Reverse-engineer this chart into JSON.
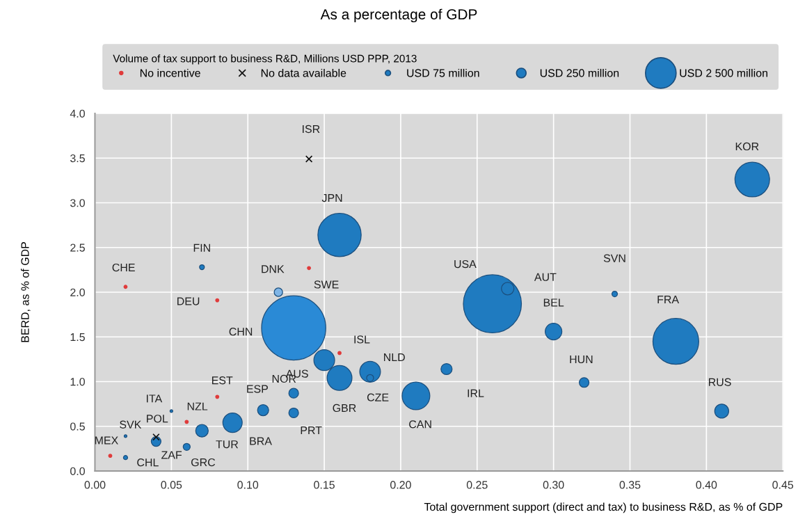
{
  "chart_data": {
    "type": "bubble",
    "title": "As a percentage of GDP",
    "xlabel": "Total government support (direct and tax) to business R&D, as % of GDP",
    "ylabel": "BERD, as % of GDP",
    "legend_title": "Volume of tax support to business R&D, Millions USD PPP, 2013",
    "legend": "top",
    "xlim": [
      0,
      0.45
    ],
    "xticks": [
      {
        "value": 0,
        "label": "0.00"
      },
      {
        "value": 0.05,
        "label": "0.05"
      },
      {
        "value": 0.1,
        "label": "0.10"
      },
      {
        "value": 0.15,
        "label": "0.15"
      },
      {
        "value": 0.2,
        "label": "0.20"
      },
      {
        "value": 0.25,
        "label": "0.25"
      },
      {
        "value": 0.3,
        "label": "0.30"
      },
      {
        "value": 0.35,
        "label": "0.35"
      },
      {
        "value": 0.4,
        "label": "0.40"
      },
      {
        "value": 0.45,
        "label": "0.45"
      }
    ],
    "ylim": [
      0,
      4
    ],
    "yticks": [
      {
        "value": 0,
        "label": "0.0"
      },
      {
        "value": 0.5,
        "label": "0.5"
      },
      {
        "value": 1,
        "label": "1.0"
      },
      {
        "value": 1.5,
        "label": "1.5"
      },
      {
        "value": 2,
        "label": "2.0"
      },
      {
        "value": 2.5,
        "label": "2.5"
      },
      {
        "value": 3,
        "label": "3.0"
      },
      {
        "value": 3.5,
        "label": "3.5"
      },
      {
        "value": 4,
        "label": "4.0"
      }
    ],
    "grid": true,
    "size_legend": [
      {
        "value": 75,
        "label": "USD 75 million"
      },
      {
        "value": 250,
        "label": "USD 250 million"
      },
      {
        "value": 2500,
        "label": "USD 2 500 million"
      }
    ],
    "series": [
      {
        "name": "No incentive",
        "type": "scatter",
        "marker": "circle",
        "color": "#e03c3c",
        "x": [
          0.01,
          0.06,
          0.08,
          0.16,
          0.14,
          0.08,
          0.02
        ],
        "values": [
          0.17,
          0.55,
          0.83,
          1.32,
          2.27,
          1.91,
          2.06
        ]
      },
      {
        "name": "No data available",
        "type": "scatter",
        "marker": "cross",
        "color": "#111111",
        "x": [
          0.04,
          0.14
        ],
        "values": [
          0.38,
          3.49
        ]
      },
      {
        "x": [
          0.02,
          0.02,
          0.04,
          0.05,
          0.06,
          0.07,
          0.09,
          0.11,
          0.13,
          0.13,
          0.13,
          0.15,
          0.16,
          0.18,
          0.18,
          0.21,
          0.23,
          0.26,
          0.27,
          0.3,
          0.32,
          0.34,
          0.38,
          0.41,
          0.43,
          0.16,
          0.12,
          0.07
        ],
        "values": [
          0.15,
          0.39,
          0.33,
          0.67,
          0.27,
          0.45,
          0.54,
          0.68,
          0.87,
          0.65,
          1.6,
          1.24,
          1.04,
          1.11,
          1.04,
          0.84,
          1.14,
          1.87,
          2.04,
          1.56,
          0.99,
          1.98,
          1.45,
          0.67,
          3.26,
          2.64,
          2.0,
          2.28
        ],
        "sizes": [
          46,
          20,
          250,
          20,
          130,
          420,
          1000,
          330,
          250,
          250,
          11000,
          1150,
          1650,
          1150,
          130,
          2050,
          330,
          9000,
          420,
          740,
          250,
          80,
          5600,
          520,
          3200,
          5000,
          190,
          63
        ],
        "colors": [
          "#1f7bc0",
          "#1f7bc0",
          "#1f7bc0",
          "#1f7bc0",
          "#1f7bc0",
          "#1f7bc0",
          "#1f7bc0",
          "#1f7bc0",
          "#1f7bc0",
          "#1f7bc0",
          "#2a8ad6",
          "#1f7bc0",
          "#1f7bc0",
          "#1f7bc0",
          "#1f7bc0",
          "#1f7bc0",
          "#1f7bc0",
          "#1f7bc0",
          "#1f7bc0",
          "#1f7bc0",
          "#1f7bc0",
          "#1f7bc0",
          "#1f7bc0",
          "#1f7bc0",
          "#1f7bc0",
          "#1f7bc0",
          "#7fb5e6",
          "#1f7bc0"
        ]
      }
    ],
    "annotations": [
      {
        "text": "MEX",
        "x": 0.01,
        "y": 0.17
      },
      {
        "text": "CHL",
        "x": 0.02,
        "y": 0.15
      },
      {
        "text": "SVK",
        "x": 0.02,
        "y": 0.39
      },
      {
        "text": "POL",
        "x": 0.04,
        "y": 0.38
      },
      {
        "text": "ZAF",
        "x": 0.04,
        "y": 0.33
      },
      {
        "text": "ITA",
        "x": 0.05,
        "y": 0.67
      },
      {
        "text": "NZL",
        "x": 0.06,
        "y": 0.55
      },
      {
        "text": "GRC",
        "x": 0.06,
        "y": 0.27
      },
      {
        "text": "TUR",
        "x": 0.07,
        "y": 0.45
      },
      {
        "text": "EST",
        "x": 0.08,
        "y": 0.83
      },
      {
        "text": "BRA",
        "x": 0.09,
        "y": 0.54
      },
      {
        "text": "ESP",
        "x": 0.11,
        "y": 0.68
      },
      {
        "text": "NOR",
        "x": 0.13,
        "y": 0.87
      },
      {
        "text": "PRT",
        "x": 0.13,
        "y": 0.65
      },
      "CHN",
      {
        "text": "ISL",
        "x": 0.16,
        "y": 1.32
      },
      {
        "text": "AUS",
        "x": 0.15,
        "y": 1.24
      },
      {
        "text": "GBR",
        "x": 0.16,
        "y": 1.04
      },
      {
        "text": "NLD",
        "x": 0.18,
        "y": 1.11
      },
      {
        "text": "CZE",
        "x": 0.18,
        "y": 1.04
      },
      "CAN",
      {
        "text": "IRL",
        "x": 0.23,
        "y": 1.14
      },
      "USA",
      {
        "text": "AUT",
        "x": 0.27,
        "y": 2.04
      },
      {
        "text": "BEL",
        "x": 0.3,
        "y": 1.56
      },
      {
        "text": "HUN",
        "x": 0.32,
        "y": 0.99
      },
      {
        "text": "SVN",
        "x": 0.34,
        "y": 1.98
      },
      "FRA",
      {
        "text": "RUS",
        "x": 0.41,
        "y": 0.67
      },
      "KOR",
      "JPN",
      {
        "text": "ISR",
        "x": 0.14,
        "y": 3.49
      },
      {
        "text": "SWE",
        "x": 0.14,
        "y": 2.27
      },
      {
        "text": "DNK",
        "x": 0.12,
        "y": 2.0
      },
      {
        "text": "FIN",
        "x": 0.07,
        "y": 2.28
      },
      {
        "text": "DEU",
        "x": 0.08,
        "y": 1.91
      },
      {
        "text": "CHE",
        "x": 0.02,
        "y": 2.06
      }
    ]
  }
}
